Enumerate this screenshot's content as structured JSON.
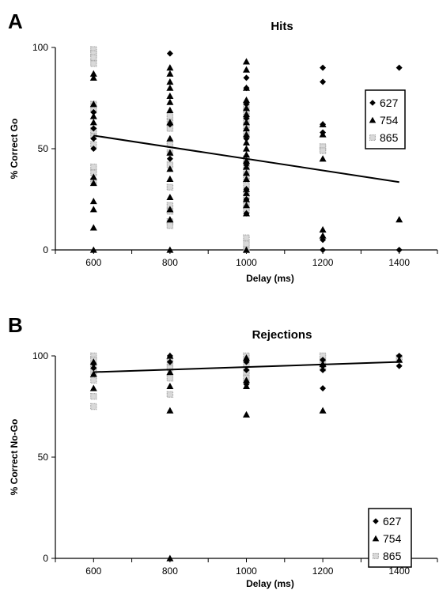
{
  "colors": {
    "ink": "#000000",
    "s865": "#a8a8a8",
    "s865_light": "#d9d9d9",
    "background": "#ffffff"
  },
  "chart_data": [
    {
      "type": "scatter",
      "panel_label": "A",
      "title": "Hits",
      "xlabel": "Delay (ms)",
      "ylabel": "% Correct Go",
      "xlim": [
        500,
        1500
      ],
      "ylim": [
        0,
        100
      ],
      "xticks": [
        600,
        800,
        1000,
        1200,
        1400
      ],
      "yticks": [
        0,
        50,
        100
      ],
      "grid": false,
      "legend": {
        "placement": "right",
        "entries": [
          {
            "label": "627",
            "marker": "diamond"
          },
          {
            "label": "754",
            "marker": "triangle"
          },
          {
            "label": "865",
            "marker": "square"
          }
        ]
      },
      "trendline": {
        "x": [
          600,
          1400
        ],
        "y": [
          56.5,
          33.5
        ]
      },
      "series": [
        {
          "name": "627",
          "marker": "diamond",
          "points": [
            [
              600,
              68
            ],
            [
              600,
              60
            ],
            [
              600,
              55
            ],
            [
              600,
              50
            ],
            [
              800,
              97
            ],
            [
              800,
              62
            ],
            [
              800,
              45
            ],
            [
              1000,
              85
            ],
            [
              1000,
              80
            ],
            [
              1000,
              72
            ],
            [
              1000,
              65
            ],
            [
              1000,
              55
            ],
            [
              1000,
              42
            ],
            [
              1000,
              30
            ],
            [
              1000,
              25
            ],
            [
              1000,
              18
            ],
            [
              1200,
              90
            ],
            [
              1200,
              83
            ],
            [
              1200,
              62
            ],
            [
              1200,
              58
            ],
            [
              1200,
              5
            ],
            [
              1200,
              0
            ],
            [
              1400,
              90
            ],
            [
              1400,
              0
            ]
          ]
        },
        {
          "name": "754",
          "marker": "triangle",
          "points": [
            [
              600,
              87
            ],
            [
              600,
              85
            ],
            [
              600,
              72
            ],
            [
              600,
              66
            ],
            [
              600,
              63
            ],
            [
              600,
              36
            ],
            [
              600,
              33
            ],
            [
              600,
              24
            ],
            [
              600,
              20
            ],
            [
              600,
              11
            ],
            [
              600,
              0
            ],
            [
              800,
              90
            ],
            [
              800,
              87
            ],
            [
              800,
              83
            ],
            [
              800,
              80
            ],
            [
              800,
              76
            ],
            [
              800,
              73
            ],
            [
              800,
              69
            ],
            [
              800,
              63
            ],
            [
              800,
              55
            ],
            [
              800,
              48
            ],
            [
              800,
              40
            ],
            [
              800,
              35
            ],
            [
              800,
              26
            ],
            [
              800,
              20
            ],
            [
              800,
              15
            ],
            [
              800,
              0
            ],
            [
              1000,
              93
            ],
            [
              1000,
              89
            ],
            [
              1000,
              80
            ],
            [
              1000,
              74
            ],
            [
              1000,
              70
            ],
            [
              1000,
              67
            ],
            [
              1000,
              63
            ],
            [
              1000,
              60
            ],
            [
              1000,
              57
            ],
            [
              1000,
              53
            ],
            [
              1000,
              50
            ],
            [
              1000,
              47
            ],
            [
              1000,
              44
            ],
            [
              1000,
              41
            ],
            [
              1000,
              38
            ],
            [
              1000,
              35
            ],
            [
              1000,
              30
            ],
            [
              1000,
              28
            ],
            [
              1000,
              25
            ],
            [
              1000,
              22
            ],
            [
              1000,
              18
            ],
            [
              1000,
              0
            ],
            [
              1200,
              62
            ],
            [
              1200,
              57
            ],
            [
              1200,
              45
            ],
            [
              1200,
              10
            ],
            [
              1200,
              7
            ],
            [
              1400,
              15
            ]
          ]
        },
        {
          "name": "865",
          "marker": "square",
          "points": [
            [
              600,
              99
            ],
            [
              600,
              97
            ],
            [
              600,
              95
            ],
            [
              600,
              92
            ],
            [
              600,
              72
            ],
            [
              600,
              69
            ],
            [
              600,
              59
            ],
            [
              600,
              56
            ],
            [
              600,
              52
            ],
            [
              600,
              41
            ],
            [
              600,
              38
            ],
            [
              600,
              34
            ],
            [
              800,
              66
            ],
            [
              800,
              63
            ],
            [
              800,
              60
            ],
            [
              800,
              52
            ],
            [
              800,
              48
            ],
            [
              800,
              42
            ],
            [
              800,
              31
            ],
            [
              800,
              22
            ],
            [
              800,
              19
            ],
            [
              800,
              14
            ],
            [
              800,
              12
            ],
            [
              1000,
              71
            ],
            [
              1000,
              68
            ],
            [
              1000,
              64
            ],
            [
              1000,
              61
            ],
            [
              1000,
              57
            ],
            [
              1000,
              45
            ],
            [
              1000,
              42
            ],
            [
              1000,
              39
            ],
            [
              1000,
              36
            ],
            [
              1000,
              32
            ],
            [
              1000,
              27
            ],
            [
              1000,
              23
            ],
            [
              1000,
              20
            ],
            [
              1000,
              6
            ],
            [
              1000,
              3
            ],
            [
              1000,
              0
            ],
            [
              1200,
              51
            ],
            [
              1200,
              49
            ]
          ]
        }
      ]
    },
    {
      "type": "scatter",
      "panel_label": "B",
      "title": "Rejections",
      "xlabel": "Delay (ms)",
      "ylabel": "% Correct No-Go",
      "xlim": [
        500,
        1500
      ],
      "ylim": [
        0,
        100
      ],
      "xticks": [
        600,
        800,
        1000,
        1200,
        1400
      ],
      "yticks": [
        0,
        50,
        100
      ],
      "grid": false,
      "legend": {
        "placement": "bottom-right",
        "entries": [
          {
            "label": "627",
            "marker": "diamond"
          },
          {
            "label": "754",
            "marker": "triangle"
          },
          {
            "label": "865",
            "marker": "square"
          }
        ]
      },
      "trendline": {
        "x": [
          600,
          1400
        ],
        "y": [
          92,
          97
        ]
      },
      "series": [
        {
          "name": "627",
          "marker": "diamond",
          "points": [
            [
              600,
              96
            ],
            [
              600,
              94
            ],
            [
              800,
              100
            ],
            [
              800,
              97
            ],
            [
              1000,
              97
            ],
            [
              1000,
              93
            ],
            [
              1000,
              86
            ],
            [
              1200,
              98
            ],
            [
              1200,
              95
            ],
            [
              1200,
              93
            ],
            [
              1200,
              84
            ],
            [
              1400,
              100
            ],
            [
              1400,
              95
            ]
          ]
        },
        {
          "name": "754",
          "marker": "triangle",
          "points": [
            [
              600,
              97
            ],
            [
              600,
              91
            ],
            [
              600,
              84
            ],
            [
              800,
              100
            ],
            [
              800,
              92
            ],
            [
              800,
              85
            ],
            [
              800,
              73
            ],
            [
              800,
              0
            ],
            [
              1000,
              99
            ],
            [
              1000,
              88
            ],
            [
              1000,
              85
            ],
            [
              1000,
              71
            ],
            [
              1200,
              96
            ],
            [
              1200,
              73
            ],
            [
              1400,
              98
            ]
          ]
        },
        {
          "name": "865",
          "marker": "square",
          "points": [
            [
              600,
              100
            ],
            [
              600,
              98
            ],
            [
              600,
              95
            ],
            [
              600,
              92
            ],
            [
              600,
              88
            ],
            [
              600,
              80
            ],
            [
              600,
              75
            ],
            [
              800,
              97
            ],
            [
              800,
              94
            ],
            [
              800,
              89
            ],
            [
              800,
              81
            ],
            [
              1000,
              100
            ],
            [
              1000,
              96
            ],
            [
              1000,
              92
            ],
            [
              1000,
              89
            ],
            [
              1200,
              100
            ],
            [
              1200,
              97
            ],
            [
              1200,
              94
            ],
            [
              1400,
              99
            ]
          ]
        }
      ]
    }
  ]
}
